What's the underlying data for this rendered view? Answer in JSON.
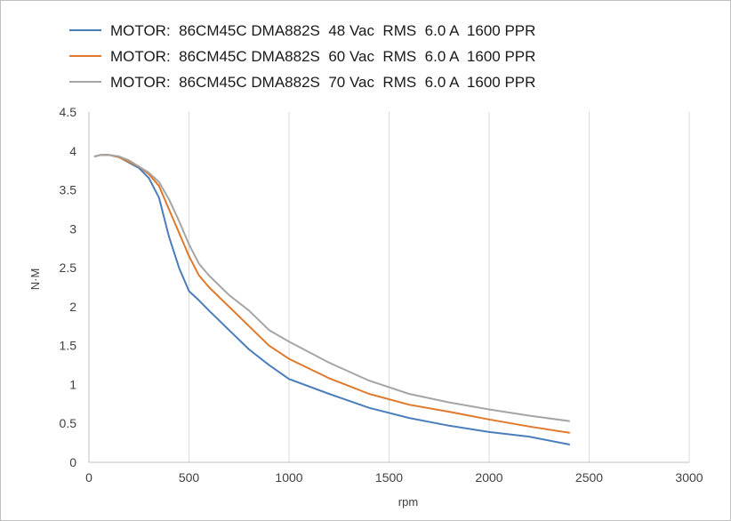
{
  "chart_data": {
    "type": "line",
    "title": "",
    "xlabel": "rpm",
    "ylabel": "N·M",
    "xlim": [
      0,
      3000
    ],
    "ylim": [
      0,
      4.5
    ],
    "x_ticks": [
      "0",
      "500",
      "1000",
      "1500",
      "2000",
      "2500",
      "3000"
    ],
    "y_ticks": [
      "0",
      "0.5",
      "1",
      "1.5",
      "2",
      "2.5",
      "3",
      "3.5",
      "4",
      "4.5"
    ],
    "grid": "vertical",
    "legend_position": "top",
    "series": [
      {
        "name": "MOTOR:  86CM45C DMA882S  48 Vac  RMS  6.0 A  1600 PPR",
        "color": "#4a7ebb",
        "points": [
          [
            30,
            3.93
          ],
          [
            60,
            3.95
          ],
          [
            100,
            3.95
          ],
          [
            150,
            3.92
          ],
          [
            200,
            3.85
          ],
          [
            250,
            3.78
          ],
          [
            300,
            3.65
          ],
          [
            350,
            3.4
          ],
          [
            400,
            2.9
          ],
          [
            450,
            2.5
          ],
          [
            500,
            2.2
          ],
          [
            550,
            2.08
          ],
          [
            600,
            1.95
          ],
          [
            700,
            1.7
          ],
          [
            800,
            1.45
          ],
          [
            900,
            1.25
          ],
          [
            1000,
            1.07
          ],
          [
            1200,
            0.88
          ],
          [
            1400,
            0.7
          ],
          [
            1600,
            0.57
          ],
          [
            1800,
            0.47
          ],
          [
            2000,
            0.39
          ],
          [
            2200,
            0.33
          ],
          [
            2400,
            0.23
          ]
        ]
      },
      {
        "name": "MOTOR:  86CM45C DMA882S  60 Vac  RMS  6.0 A  1600 PPR",
        "color": "#e0792b",
        "points": [
          [
            30,
            3.93
          ],
          [
            60,
            3.95
          ],
          [
            100,
            3.95
          ],
          [
            150,
            3.92
          ],
          [
            200,
            3.86
          ],
          [
            250,
            3.8
          ],
          [
            300,
            3.7
          ],
          [
            350,
            3.55
          ],
          [
            400,
            3.25
          ],
          [
            450,
            2.95
          ],
          [
            500,
            2.65
          ],
          [
            550,
            2.4
          ],
          [
            600,
            2.25
          ],
          [
            700,
            2.0
          ],
          [
            800,
            1.75
          ],
          [
            900,
            1.5
          ],
          [
            1000,
            1.33
          ],
          [
            1200,
            1.08
          ],
          [
            1400,
            0.88
          ],
          [
            1600,
            0.74
          ],
          [
            1800,
            0.65
          ],
          [
            2000,
            0.55
          ],
          [
            2200,
            0.46
          ],
          [
            2400,
            0.38
          ]
        ]
      },
      {
        "name": "MOTOR:  86CM45C DMA882S  70 Vac  RMS  6.0 A  1600 PPR",
        "color": "#a5a5a5",
        "points": [
          [
            30,
            3.93
          ],
          [
            60,
            3.95
          ],
          [
            100,
            3.95
          ],
          [
            150,
            3.93
          ],
          [
            200,
            3.88
          ],
          [
            250,
            3.8
          ],
          [
            300,
            3.72
          ],
          [
            350,
            3.6
          ],
          [
            400,
            3.38
          ],
          [
            450,
            3.1
          ],
          [
            500,
            2.8
          ],
          [
            550,
            2.55
          ],
          [
            600,
            2.4
          ],
          [
            700,
            2.15
          ],
          [
            800,
            1.95
          ],
          [
            900,
            1.7
          ],
          [
            1000,
            1.55
          ],
          [
            1200,
            1.28
          ],
          [
            1400,
            1.05
          ],
          [
            1600,
            0.88
          ],
          [
            1800,
            0.77
          ],
          [
            2000,
            0.68
          ],
          [
            2200,
            0.6
          ],
          [
            2400,
            0.53
          ]
        ]
      }
    ]
  }
}
